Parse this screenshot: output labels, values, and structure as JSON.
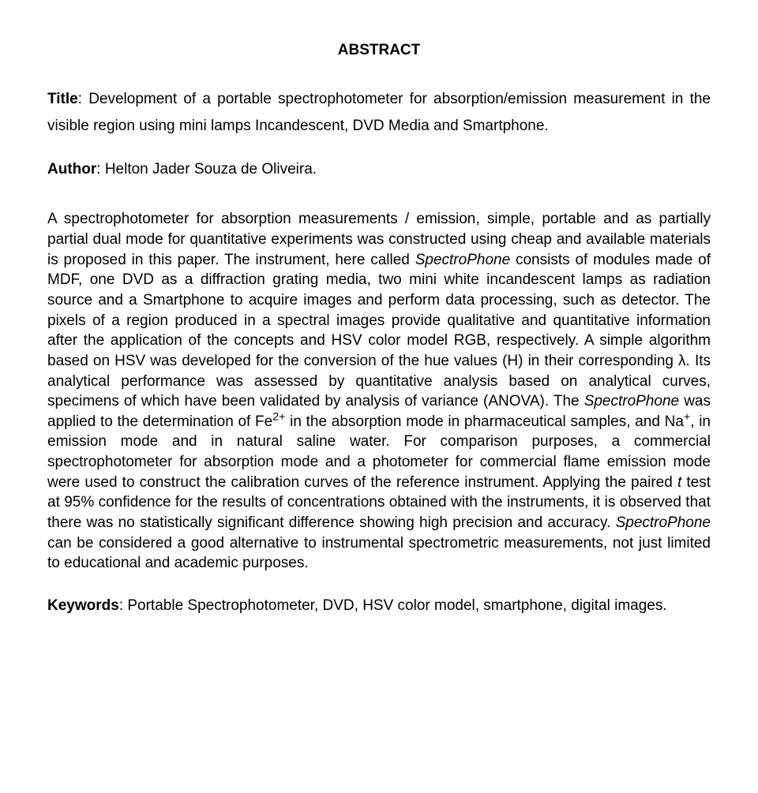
{
  "heading": "ABSTRACT",
  "title_label": "Title",
  "title_text": ": Development of a portable spectrophotometer for absorption/emission measurement in the visible region using mini lamps Incandescent, DVD Media and Smartphone.",
  "author_label": "Author",
  "author_text": ": Helton Jader Souza de Oliveira.",
  "body_part1": "A spectrophotometer for absorption measurements / emission, simple, portable and as partially partial dual mode for quantitative experiments was constructed using cheap and available materials is proposed in this paper. The instrument, here called ",
  "body_em1": "SpectroPhone",
  "body_part2": " consists of modules made of MDF, one DVD as a diffraction grating media, two mini white incandescent lamps as radiation source and a Smartphone to acquire images and perform data processing, such as detector. The pixels of a region produced in a spectral images provide qualitative and quantitative information after the application of the concepts and HSV color model RGB, respectively. A simple algorithm based on HSV was developed for the conversion of the hue values (H) in their corresponding λ. Its analytical performance was assessed by quantitative analysis based on analytical curves, specimens of which have been validated by analysis of variance (ANOVA). The ",
  "body_em2": "SpectroPhone",
  "body_part3": " was applied to the determination of Fe",
  "body_sup1": "2+",
  "body_part4": " in the absorption mode in pharmaceutical samples, and Na",
  "body_sup2": "+",
  "body_part5": ", in emission mode and in natural saline water. For comparison purposes, a commercial spectrophotometer for absorption mode and a photometer for commercial flame emission mode were used to construct the calibration curves of the reference instrument. Applying the paired ",
  "body_em3": "t",
  "body_part6": " test at 95% confidence for the results of concentrations obtained with the instruments, it is observed that there was no statistically significant difference showing high precision and accuracy. ",
  "body_em4": "SpectroPhone",
  "body_part7": " can be considered a good alternative to instrumental spectrometric measurements, not just limited to educational and academic purposes.",
  "keywords_label": "Keywords",
  "keywords_text": ": Portable Spectrophotometer, DVD, HSV color model, smartphone, digital images."
}
